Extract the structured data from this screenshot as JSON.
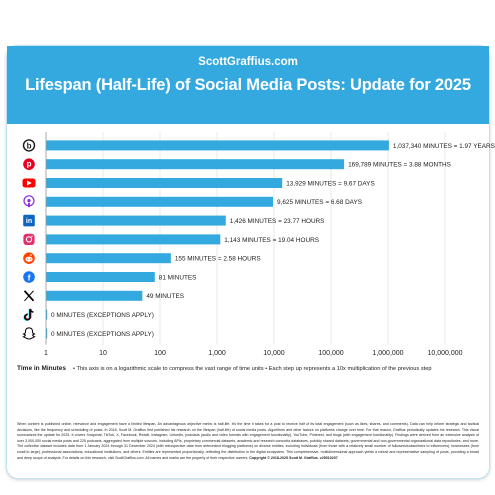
{
  "header": {
    "site": "ScottGraffius.com",
    "title": "Lifespan (Half-Life) of Social Media Posts: Update for 2025"
  },
  "colors": {
    "header_bg": "#33a9e0",
    "bar": "#33a9e0",
    "grid": "#d9d9d9",
    "axis_text": "#222222"
  },
  "chart_data": {
    "type": "bar",
    "orientation": "horizontal",
    "scale": "log",
    "title": "Lifespan (Half-Life) of Social Media Posts: Update for 2025",
    "categories": [
      "Blogs",
      "Pinterest",
      "YouTube",
      "Podcasts",
      "LinkedIn",
      "Instagram",
      "Reddit",
      "Facebook",
      "X",
      "TikTok",
      "Snapchat"
    ],
    "values": [
      1037340,
      169789,
      13929,
      9625,
      1426,
      1143,
      155,
      81,
      49,
      0,
      0
    ],
    "data_labels": [
      "1,037,340 MINUTES = 1.97 YEARS",
      "169,789 MINUTES = 3.88 MONTHS",
      "13,929 MINUTES = 9.67 DAYS",
      "9,625 MINUTES = 6.68 DAYS",
      "1,426 MINUTES = 23.77 HOURS",
      "1,143 MINUTES = 19.04 HOURS",
      "155 MINUTES = 2.58 HOURS",
      "81 MINUTES",
      "49 MINUTES",
      "0 MINUTES (EXCEPTIONS APPLY)",
      "0 MINUTES (EXCEPTIONS APPLY)"
    ],
    "xlim": [
      1,
      10000000
    ],
    "x_ticks": [
      1,
      10,
      100,
      1000,
      10000,
      100000,
      1000000,
      10000000
    ],
    "x_tick_labels": [
      "1",
      "10",
      "100",
      "1,000",
      "10,000",
      "100,000",
      "1,000,000",
      "10,000,000"
    ],
    "xlabel": "Time in Minutes",
    "xlabel_note": "This axis is on a logarithmic scale to compress the vast range of time units • Each step up represents a 10x multiplication of the previous step",
    "grid": true,
    "icons": [
      "blog-icon",
      "pinterest-icon",
      "youtube-icon",
      "podcast-icon",
      "linkedin-icon",
      "instagram-icon",
      "reddit-icon",
      "facebook-icon",
      "x-icon",
      "tiktok-icon",
      "snapchat-icon"
    ],
    "icon_colors": [
      "#1a1a1a",
      "#e60023",
      "#ff0000",
      "#8a2be2",
      "#0a66c2",
      "#e1306c",
      "#ff4500",
      "#1877f2",
      "#000000",
      "#000000",
      "#000000"
    ]
  },
  "footnote": "When content is published online, relevance and engagement have a limited lifespan. An advantageous objective metric is half-life. It's the time it takes for a post to receive half of its total engagement (such as likes, shares, and comments). Data can help inform strategic and tactical decisions, like the frequency and scheduling of posts. In 2018, Scott M. Graffius first published his research on the lifespan (half-life) of social media posts. Algorithms and other factors on platforms change over time. For that reason, Graffius periodically updates his research. This visual summarizes the update for 2025. It covers Snapchat, TikTok, X, Facebook, Reddit, Instagram, LinkedIn, podcasts (audio and video formats with engagement functionality), YouTube, Pinterest, and blogs (with engagement functionality). Findings were derived from an extensive analysis of over 3,000,000 social media posts and 225 podcasts, aggregated from multiple sources, including APIs, proprietary commercial datasets, academic and research consortia databases, publicly shared datasets, governmental and non-governmental organizational data repositories, and more. The collective dataset includes data from 1 January 2024 through 31 December 2024 (with retrospective data from antecedent blogging platforms) on diverse entities, including individuals (from those with a relatively small number of followers/subscribers to influencers), businesses (from small to large), professional associations, educational institutions, and others. Entities are represented proportionally, reflecting the distribution in the digital ecosystem. This comprehensive, multidimensional approach yields a robust and representative sampling of posts, providing a broad and deep scope of analysis. For details on this research, visit ScottGraffius.com. All names and marks are the property of their respective owners.",
  "copyright": "Copyright © 2018-2025 Scott M. Graffius. v25010207"
}
